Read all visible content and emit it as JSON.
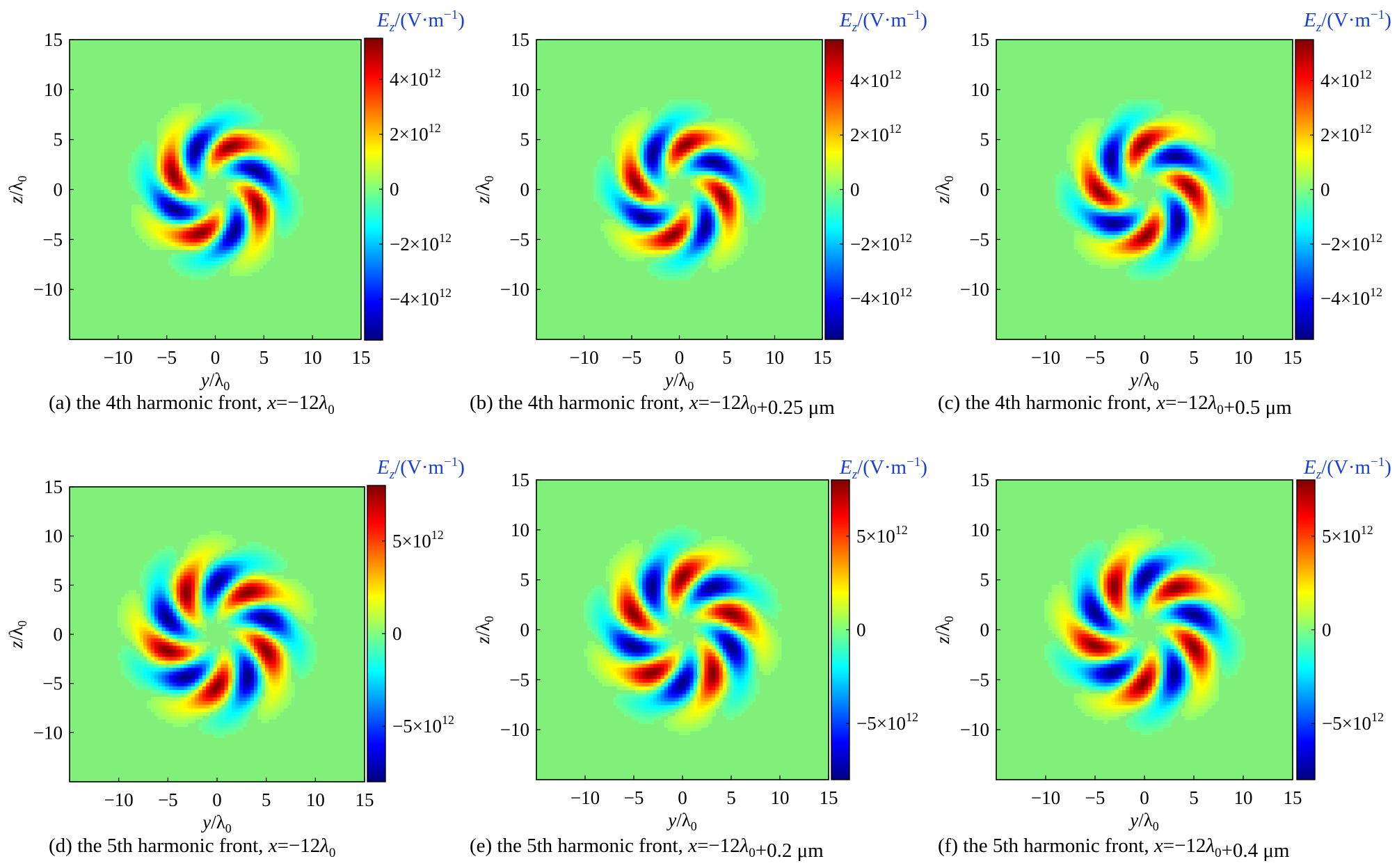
{
  "figure": {
    "colormap": [
      "#00007f",
      "#0000ff",
      "#007fff",
      "#00ffff",
      "#7fff7f",
      "#ffff00",
      "#ff7f00",
      "#ff0000",
      "#7f0000"
    ],
    "background_color": "#80f07a"
  },
  "chart_data": [
    {
      "type": "heatmap",
      "panel_id": "a",
      "caption": {
        "pre": "(a) the 4th harmonic front, ",
        "expr": "x=−12λ₀"
      },
      "xlabel": "y/λ₀",
      "ylabel": "z/λ₀",
      "colorbar_label": "E_z/(V·m⁻¹)",
      "xlim": [
        -15,
        15
      ],
      "ylim": [
        -15,
        15
      ],
      "xticks": [
        -10,
        -5,
        0,
        5,
        10,
        15
      ],
      "yticks": [
        -10,
        -5,
        0,
        5,
        10,
        15
      ],
      "clim": [
        -5500000000000.0,
        5500000000000.0
      ],
      "colorbar_ticks": [
        {
          "value": 4000000000000.0,
          "label": "4×10¹²"
        },
        {
          "value": 2000000000000.0,
          "label": "2×10¹²"
        },
        {
          "value": 0,
          "label": "0"
        },
        {
          "value": -2000000000000.0,
          "label": "−2×10¹²"
        },
        {
          "value": -4000000000000.0,
          "label": "−4×10¹²"
        }
      ],
      "field_model": {
        "lobes": 8,
        "radius": 4.6,
        "phase_deg": 78,
        "twist_deg": 10
      }
    },
    {
      "type": "heatmap",
      "panel_id": "b",
      "caption": {
        "pre": "(b) the 4th harmonic front, ",
        "expr": "x=−12λ₀+0.25 μm"
      },
      "xlabel": "y/λ₀",
      "ylabel": "z/λ₀",
      "colorbar_label": "E_z/(V·m⁻¹)",
      "xlim": [
        -15,
        15
      ],
      "ylim": [
        -15,
        15
      ],
      "xticks": [
        -10,
        -5,
        0,
        5,
        10,
        15
      ],
      "yticks": [
        -10,
        -5,
        0,
        5,
        10,
        15
      ],
      "clim": [
        -5500000000000.0,
        5500000000000.0
      ],
      "colorbar_ticks": [
        {
          "value": 4000000000000.0,
          "label": "4×10¹²"
        },
        {
          "value": 2000000000000.0,
          "label": "2×10¹²"
        },
        {
          "value": 0,
          "label": "0"
        },
        {
          "value": -2000000000000.0,
          "label": "−2×10¹²"
        },
        {
          "value": -4000000000000.0,
          "label": "−4×10¹²"
        }
      ],
      "field_model": {
        "lobes": 8,
        "radius": 4.6,
        "phase_deg": 33,
        "twist_deg": 10
      }
    },
    {
      "type": "heatmap",
      "panel_id": "c",
      "caption": {
        "pre": "(c) the 4th harmonic front, ",
        "expr": "x=−12λ₀+0.5 μm"
      },
      "xlabel": "y/λ₀",
      "ylabel": "z/λ₀",
      "colorbar_label": "E_z/(V·m⁻¹)",
      "xlim": [
        -15,
        15
      ],
      "ylim": [
        -15,
        15
      ],
      "xticks": [
        -10,
        -5,
        0,
        5,
        10,
        15
      ],
      "yticks": [
        -10,
        -5,
        0,
        5,
        10,
        15
      ],
      "clim": [
        -5500000000000.0,
        5500000000000.0
      ],
      "colorbar_ticks": [
        {
          "value": 4000000000000.0,
          "label": "4×10¹²"
        },
        {
          "value": 2000000000000.0,
          "label": "2×10¹²"
        },
        {
          "value": 0,
          "label": "0"
        },
        {
          "value": -2000000000000.0,
          "label": "−2×10¹²"
        },
        {
          "value": -4000000000000.0,
          "label": "−4×10¹²"
        }
      ],
      "field_model": {
        "lobes": 8,
        "radius": 4.6,
        "phase_deg": 350,
        "twist_deg": 10
      }
    },
    {
      "type": "heatmap",
      "panel_id": "d",
      "caption": {
        "pre": "(d) the 5th harmonic front, ",
        "expr": "x=−12λ₀"
      },
      "xlabel": "y/λ₀",
      "ylabel": "z/λ₀",
      "colorbar_label": "E_z/(V·m⁻¹)",
      "xlim": [
        -15,
        15
      ],
      "ylim": [
        -15,
        15
      ],
      "xticks": [
        -10,
        -5,
        0,
        5,
        10,
        15
      ],
      "yticks": [
        -10,
        -5,
        0,
        5,
        10,
        15
      ],
      "clim": [
        -8000000000000.0,
        8000000000000.0
      ],
      "colorbar_ticks": [
        {
          "value": 5000000000000.0,
          "label": "5×10¹²"
        },
        {
          "value": 0,
          "label": "0"
        },
        {
          "value": -5000000000000.0,
          "label": "−5×10¹²"
        }
      ],
      "field_model": {
        "lobes": 10,
        "radius": 5.3,
        "phase_deg": 90,
        "twist_deg": 6
      }
    },
    {
      "type": "heatmap",
      "panel_id": "e",
      "caption": {
        "pre": "(e) the 5th harmonic front, ",
        "expr": "x=−12λ₀+0.2 μm"
      },
      "xlabel": "y/λ₀",
      "ylabel": "z/λ₀",
      "colorbar_label": "E_z/(V·m⁻¹)",
      "xlim": [
        -15,
        15
      ],
      "ylim": [
        -15,
        15
      ],
      "xticks": [
        -10,
        -5,
        0,
        5,
        10,
        15
      ],
      "yticks": [
        -10,
        -5,
        0,
        5,
        10,
        15
      ],
      "clim": [
        -8000000000000.0,
        8000000000000.0
      ],
      "colorbar_ticks": [
        {
          "value": 5000000000000.0,
          "label": "5×10¹²"
        },
        {
          "value": 0,
          "label": "0"
        },
        {
          "value": -5000000000000.0,
          "label": "−5×10¹²"
        }
      ],
      "field_model": {
        "lobes": 10,
        "radius": 5.3,
        "phase_deg": 270,
        "twist_deg": 6
      }
    },
    {
      "type": "heatmap",
      "panel_id": "f",
      "caption": {
        "pre": "(f) the 5th harmonic front, ",
        "expr": "x=−12λ₀+0.4 μm"
      },
      "xlabel": "y/λ₀",
      "ylabel": "z/λ₀",
      "colorbar_label": "E_z/(V·m⁻¹)",
      "xlim": [
        -15,
        15
      ],
      "ylim": [
        -15,
        15
      ],
      "xticks": [
        -10,
        -5,
        0,
        5,
        10,
        15
      ],
      "yticks": [
        -10,
        -5,
        0,
        5,
        10,
        15
      ],
      "clim": [
        -8000000000000.0,
        8000000000000.0
      ],
      "colorbar_ticks": [
        {
          "value": 5000000000000.0,
          "label": "5×10¹²"
        },
        {
          "value": 0,
          "label": "0"
        },
        {
          "value": -5000000000000.0,
          "label": "−5×10¹²"
        }
      ],
      "field_model": {
        "lobes": 10,
        "radius": 5.3,
        "phase_deg": 95,
        "twist_deg": 6
      }
    }
  ]
}
